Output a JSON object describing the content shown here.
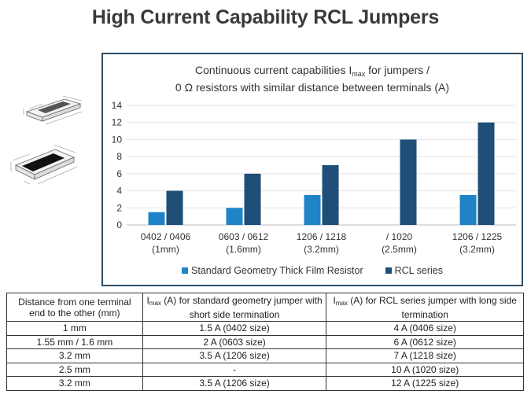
{
  "slide": {
    "title": "High Current Capability RCL Jumpers"
  },
  "chart_data": {
    "type": "bar",
    "title_line1": "Continuous  current  capabilities",
    "title_sym": "I",
    "title_sub": "max",
    "title_line1b": " for jumpers  /",
    "title_line2": "0 Ω  resistors with similar distance between terminals (A)",
    "categories": [
      [
        "0402 / 0406",
        "(1mm)"
      ],
      [
        "0603 / 0612",
        "(1.6mm)"
      ],
      [
        "1206 / 1218",
        "(3.2mm)"
      ],
      [
        "/ 1020",
        "(2.5mm)"
      ],
      [
        "1206 / 1225",
        "(3.2mm)"
      ]
    ],
    "series": [
      {
        "name": "Standard Geometry Thick Film Resistor",
        "color": "#1f84c6",
        "values": [
          1.5,
          2,
          3.5,
          null,
          3.5
        ]
      },
      {
        "name": "RCL series",
        "color": "#1f4e79",
        "values": [
          4,
          6,
          7,
          10,
          12
        ]
      }
    ],
    "ylim": [
      0,
      14
    ],
    "yticks": [
      0,
      2,
      4,
      6,
      8,
      10,
      12,
      14
    ],
    "grid": true,
    "legend": "bottom"
  },
  "table": {
    "headers": {
      "col1": "Distance from one terminal end to the other (mm)",
      "col2_sym": "I",
      "col2_sub": "max",
      "col2_rest": " (A) for standard geometry jumper with short side termination",
      "col3_sym": "I",
      "col3_sub": "max",
      "col3_rest": " (A) for RCL series jumper with long side termination"
    },
    "rows": [
      [
        "1 mm",
        "1.5 A (0402 size)",
        "4 A (0406 size)"
      ],
      [
        "1.55 mm / 1.6 mm",
        "2 A (0603 size)",
        "6 A (0612 size)"
      ],
      [
        "3.2 mm",
        "3.5 A (1206 size)",
        "7 A (1218 size)"
      ],
      [
        "2.5 mm",
        "-",
        "10 A (1020 size)"
      ],
      [
        "3.2 mm",
        "3.5 A (1206 size)",
        "12 A (1225 size)"
      ]
    ]
  }
}
